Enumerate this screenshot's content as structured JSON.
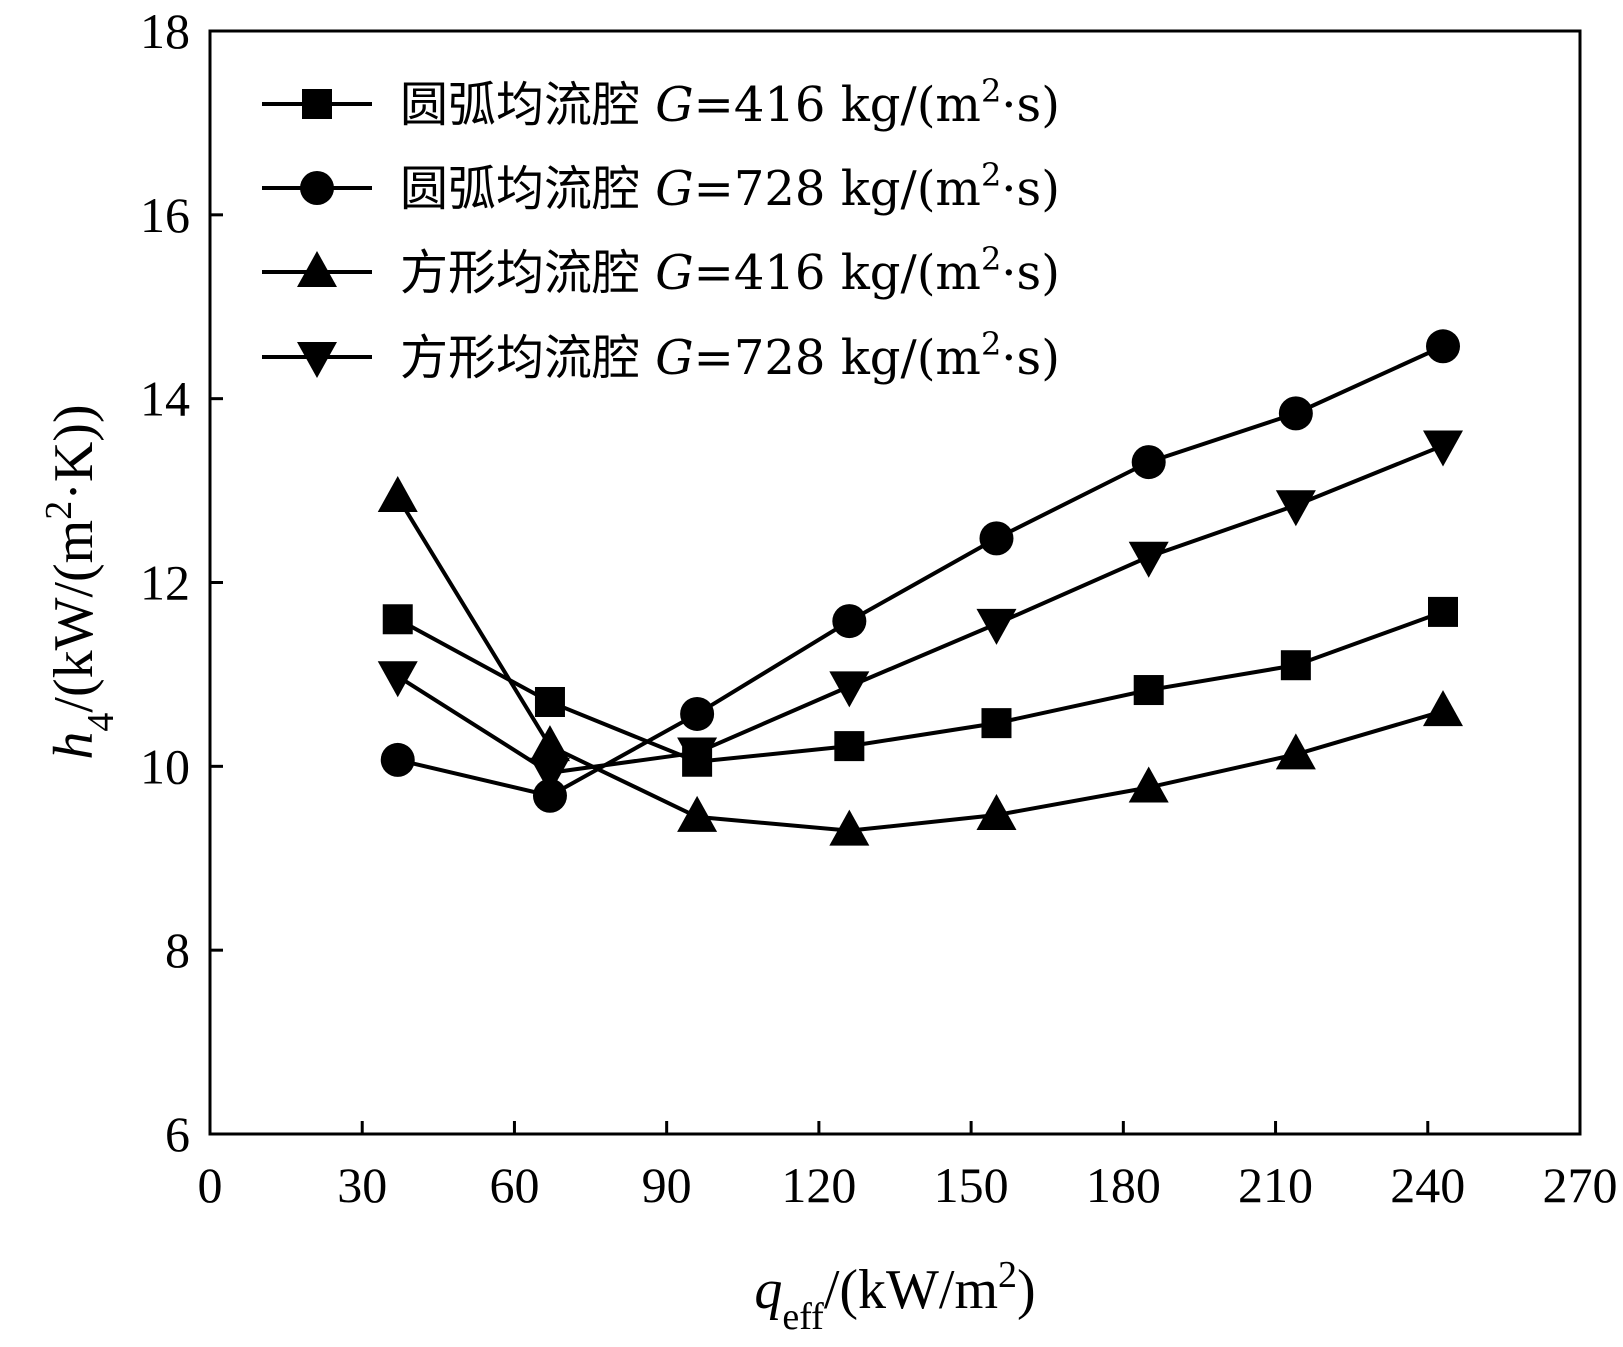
{
  "chart_data": {
    "type": "line",
    "x": [
      37,
      67,
      96,
      126,
      155,
      185,
      214,
      243
    ],
    "xlim": [
      0,
      270
    ],
    "ylim": [
      6,
      18
    ],
    "xticks": [
      "0",
      "30",
      "60",
      "90",
      "120",
      "150",
      "180",
      "210",
      "240",
      "270"
    ],
    "yticks": [
      "6",
      "8",
      "10",
      "12",
      "14",
      "16",
      "18"
    ],
    "xlabel": {
      "main": "q",
      "sub": "eff",
      "rest": "/(kW/m",
      "sup": "2",
      "close": ")"
    },
    "ylabel": {
      "main": "h",
      "sub": "4",
      "rest": "/(kW/(m",
      "sup": "2",
      "close": "·K))"
    },
    "legend_position": "top-left",
    "series": [
      {
        "name": "圆弧均流腔 G=416 kg/(m2·s)",
        "label_cn": "圆弧均流腔 ",
        "label_g": "G",
        "label_val": "=416 kg/(m",
        "label_sup": "2",
        "label_end": "·s)",
        "marker": "square",
        "values": [
          11.6,
          10.7,
          10.05,
          10.22,
          10.47,
          10.83,
          11.1,
          11.68
        ]
      },
      {
        "name": "圆弧均流腔 G=728 kg/(m2·s)",
        "label_cn": "圆弧均流腔 ",
        "label_g": "G",
        "label_val": "=728 kg/(m",
        "label_sup": "2",
        "label_end": "·s)",
        "marker": "circle",
        "values": [
          10.07,
          9.68,
          10.57,
          11.58,
          12.48,
          13.31,
          13.84,
          14.57
        ]
      },
      {
        "name": "方形均流腔 G=416 kg/(m2·s)",
        "label_cn": "方形均流腔 ",
        "label_g": "G",
        "label_val": "=416 kg/(m",
        "label_sup": "2",
        "label_end": "·s)",
        "marker": "triangle-up",
        "values": [
          12.93,
          10.22,
          9.45,
          9.3,
          9.47,
          9.77,
          10.13,
          10.6
        ]
      },
      {
        "name": "方形均流腔 G=728 kg/(m2·s)",
        "label_cn": "方形均流腔 ",
        "label_g": "G",
        "label_val": "=728 kg/(m",
        "label_sup": "2",
        "label_end": "·s)",
        "marker": "triangle-down",
        "values": [
          10.98,
          9.93,
          10.15,
          10.87,
          11.55,
          12.28,
          12.84,
          13.49
        ]
      }
    ]
  }
}
